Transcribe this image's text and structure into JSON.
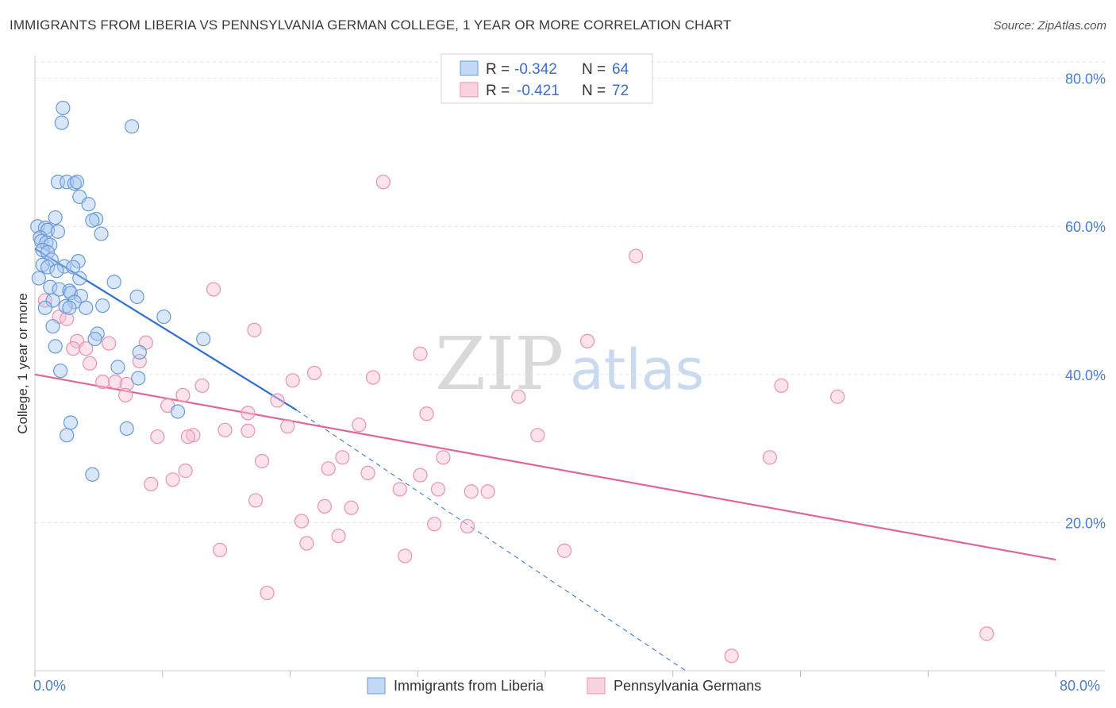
{
  "header": {
    "title": "IMMIGRANTS FROM LIBERIA VS PENNSYLVANIA GERMAN COLLEGE, 1 YEAR OR MORE CORRELATION CHART",
    "source": "Source: ZipAtlas.com"
  },
  "watermark": {
    "zip": "ZIP",
    "atlas": "atlas"
  },
  "legend": {
    "rows": [
      {
        "r_label": "R =",
        "r_value": "-0.342",
        "n_label": "N =",
        "n_value": "64"
      },
      {
        "r_label": "R =",
        "r_value": "-0.421",
        "n_label": "N =",
        "n_value": "72"
      }
    ]
  },
  "bottom_legend": {
    "items": [
      {
        "label": "Immigrants from Liberia"
      },
      {
        "label": "Pennsylvania Germans"
      }
    ]
  },
  "chart_data": {
    "type": "scatter",
    "title": "IMMIGRANTS FROM LIBERIA VS PENNSYLVANIA GERMAN COLLEGE, 1 YEAR OR MORE CORRELATION CHART",
    "xlabel": "",
    "ylabel": "College, 1 year or more",
    "xlim": [
      0,
      80
    ],
    "ylim": [
      0,
      82
    ],
    "x_tick_labels": [
      "0.0%",
      "80.0%"
    ],
    "y_ticks": [
      20,
      40,
      60,
      80
    ],
    "y_tick_labels": [
      "20.0%",
      "40.0%",
      "60.0%",
      "80.0%"
    ],
    "grid": true,
    "colors": {
      "blue_fill": "#a9c8f0",
      "blue_stroke": "#6a9ad8",
      "blue_line": "#2f6fd0",
      "pink_fill": "#f6bfd3",
      "pink_stroke": "#e892b2",
      "pink_line": "#e0669a",
      "tick_text": "#4a7cc9"
    },
    "series": [
      {
        "name": "Immigrants from Liberia",
        "R": -0.342,
        "N": 64,
        "trend": {
          "x0": 0,
          "y0": 57,
          "x1": 20.5,
          "y1": 35.2,
          "dash_x1": 51,
          "dash_y1": 0
        },
        "points": [
          [
            2.2,
            76
          ],
          [
            2.1,
            74
          ],
          [
            7.6,
            73.5
          ],
          [
            1.8,
            66
          ],
          [
            2.5,
            66
          ],
          [
            3.1,
            65.8
          ],
          [
            3.3,
            66
          ],
          [
            3.5,
            64
          ],
          [
            4.2,
            63
          ],
          [
            1.6,
            61.2
          ],
          [
            4.8,
            61
          ],
          [
            4.5,
            60.8
          ],
          [
            0.2,
            60
          ],
          [
            0.8,
            59.8
          ],
          [
            1.0,
            59.5
          ],
          [
            1.8,
            59.3
          ],
          [
            5.2,
            59
          ],
          [
            0.4,
            58.5
          ],
          [
            0.5,
            58
          ],
          [
            0.9,
            57.8
          ],
          [
            1.2,
            57.5
          ],
          [
            0.6,
            56.8
          ],
          [
            1.0,
            56.5
          ],
          [
            1.3,
            55.5
          ],
          [
            3.4,
            55.3
          ],
          [
            0.6,
            54.8
          ],
          [
            1.0,
            54.5
          ],
          [
            2.3,
            54.6
          ],
          [
            3.0,
            54.5
          ],
          [
            1.7,
            54
          ],
          [
            0.3,
            53
          ],
          [
            3.5,
            53
          ],
          [
            6.2,
            52.5
          ],
          [
            1.2,
            51.8
          ],
          [
            1.9,
            51.5
          ],
          [
            2.7,
            51.3
          ],
          [
            2.8,
            51
          ],
          [
            3.6,
            50.6
          ],
          [
            8.0,
            50.5
          ],
          [
            1.4,
            50
          ],
          [
            3.1,
            49.8
          ],
          [
            2.4,
            49.2
          ],
          [
            0.8,
            49
          ],
          [
            2.7,
            49
          ],
          [
            4.0,
            49
          ],
          [
            5.3,
            49.3
          ],
          [
            10.1,
            47.8
          ],
          [
            1.4,
            46.5
          ],
          [
            4.9,
            45.5
          ],
          [
            4.7,
            44.8
          ],
          [
            13.2,
            44.8
          ],
          [
            1.6,
            43.8
          ],
          [
            8.2,
            43
          ],
          [
            6.5,
            41
          ],
          [
            2.0,
            40.5
          ],
          [
            8.1,
            39.5
          ],
          [
            11.2,
            35
          ],
          [
            2.8,
            33.5
          ],
          [
            7.2,
            32.7
          ],
          [
            2.5,
            31.8
          ],
          [
            4.5,
            26.5
          ]
        ]
      },
      {
        "name": "Pennsylvania Germans",
        "R": -0.421,
        "N": 72,
        "trend": {
          "x0": 0,
          "y0": 40,
          "x1": 80,
          "y1": 15
        },
        "points": [
          [
            27.3,
            66
          ],
          [
            47.1,
            56
          ],
          [
            14.0,
            51.5
          ],
          [
            0.8,
            50
          ],
          [
            1.9,
            47.8
          ],
          [
            2.5,
            47.5
          ],
          [
            17.2,
            46
          ],
          [
            3.3,
            44.5
          ],
          [
            5.8,
            44.2
          ],
          [
            8.7,
            44.3
          ],
          [
            43.3,
            44.5
          ],
          [
            3.0,
            43.5
          ],
          [
            4.0,
            43.5
          ],
          [
            30.2,
            42.8
          ],
          [
            8.2,
            41.8
          ],
          [
            4.3,
            41.5
          ],
          [
            21.9,
            40.2
          ],
          [
            26.5,
            39.6
          ],
          [
            20.2,
            39.2
          ],
          [
            5.3,
            39
          ],
          [
            6.3,
            39
          ],
          [
            7.2,
            38.7
          ],
          [
            13.1,
            38.5
          ],
          [
            58.5,
            38.5
          ],
          [
            7.1,
            37.2
          ],
          [
            11.6,
            37.2
          ],
          [
            19.0,
            36.5
          ],
          [
            62.9,
            37
          ],
          [
            37.9,
            37
          ],
          [
            10.4,
            35.8
          ],
          [
            16.7,
            34.8
          ],
          [
            30.7,
            34.7
          ],
          [
            25.4,
            33.2
          ],
          [
            19.8,
            33
          ],
          [
            14.9,
            32.5
          ],
          [
            16.7,
            32.4
          ],
          [
            12.4,
            31.8
          ],
          [
            9.6,
            31.6
          ],
          [
            12.0,
            31.6
          ],
          [
            39.4,
            31.8
          ],
          [
            24.1,
            28.8
          ],
          [
            32.0,
            28.8
          ],
          [
            57.6,
            28.8
          ],
          [
            17.8,
            28.3
          ],
          [
            23.0,
            27.3
          ],
          [
            11.8,
            27
          ],
          [
            26.1,
            26.7
          ],
          [
            30.2,
            26.4
          ],
          [
            10.8,
            25.8
          ],
          [
            9.1,
            25.2
          ],
          [
            28.6,
            24.5
          ],
          [
            31.6,
            24.5
          ],
          [
            34.2,
            24.2
          ],
          [
            35.5,
            24.2
          ],
          [
            17.3,
            23
          ],
          [
            22.7,
            22.2
          ],
          [
            24.8,
            22
          ],
          [
            20.9,
            20.2
          ],
          [
            31.3,
            19.8
          ],
          [
            33.9,
            19.5
          ],
          [
            23.8,
            18.2
          ],
          [
            21.3,
            17.2
          ],
          [
            14.5,
            16.3
          ],
          [
            41.5,
            16.2
          ],
          [
            29.0,
            15.5
          ],
          [
            18.2,
            10.5
          ],
          [
            74.6,
            5
          ],
          [
            54.6,
            2
          ]
        ]
      }
    ]
  }
}
